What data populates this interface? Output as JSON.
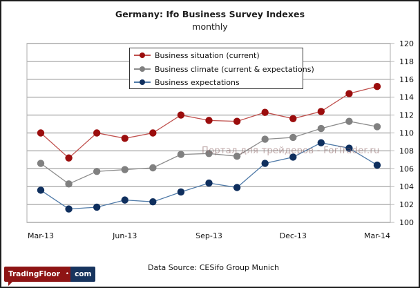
{
  "chart_data": {
    "type": "line",
    "title": "Germany: Ifo Business Survey Indexes",
    "subtitle": "monthly",
    "xlabel": "",
    "ylabel": "",
    "x": [
      "Mar-13",
      "Apr-13",
      "May-13",
      "Jun-13",
      "Jul-13",
      "Aug-13",
      "Sep-13",
      "Oct-13",
      "Nov-13",
      "Dec-13",
      "Jan-14",
      "Feb-14",
      "Mar-14"
    ],
    "x_tick_labels": [
      "Mar-13",
      "Jun-13",
      "Sep-13",
      "Dec-13",
      "Mar-14"
    ],
    "x_tick_indices": [
      0,
      3,
      6,
      9,
      12
    ],
    "ylim": [
      100,
      120
    ],
    "y_ticks": [
      100,
      102,
      104,
      106,
      108,
      110,
      112,
      114,
      116,
      118,
      120
    ],
    "y_axis_side": "right",
    "grid": true,
    "legend_position": "top-center",
    "series": [
      {
        "name": "Business situation (current)",
        "color": "#9b0d0d",
        "line_color": "#c0504d",
        "values": [
          110.0,
          107.2,
          110.0,
          109.4,
          110.0,
          112.0,
          111.4,
          111.3,
          112.3,
          111.6,
          112.4,
          114.4,
          115.2
        ]
      },
      {
        "name": "Business climate (current & expectations)",
        "color": "#808080",
        "line_color": "#8c8c8c",
        "values": [
          106.6,
          104.3,
          105.7,
          105.9,
          106.1,
          107.6,
          107.7,
          107.4,
          109.3,
          109.5,
          110.5,
          111.3,
          110.7
        ]
      },
      {
        "name": "Business expectations",
        "color": "#0f2f5e",
        "line_color": "#4f7aa8",
        "values": [
          103.6,
          101.5,
          101.7,
          102.5,
          102.3,
          103.4,
          104.4,
          103.9,
          106.6,
          107.3,
          108.9,
          108.3,
          106.4
        ]
      }
    ],
    "watermark": "Портал для трейдеров - ForTrader.ru"
  },
  "footer": {
    "source": "Data Source: CESifo Group Munich",
    "logo_left": "TradingFloor",
    "logo_dot": "•",
    "logo_right": "com"
  }
}
